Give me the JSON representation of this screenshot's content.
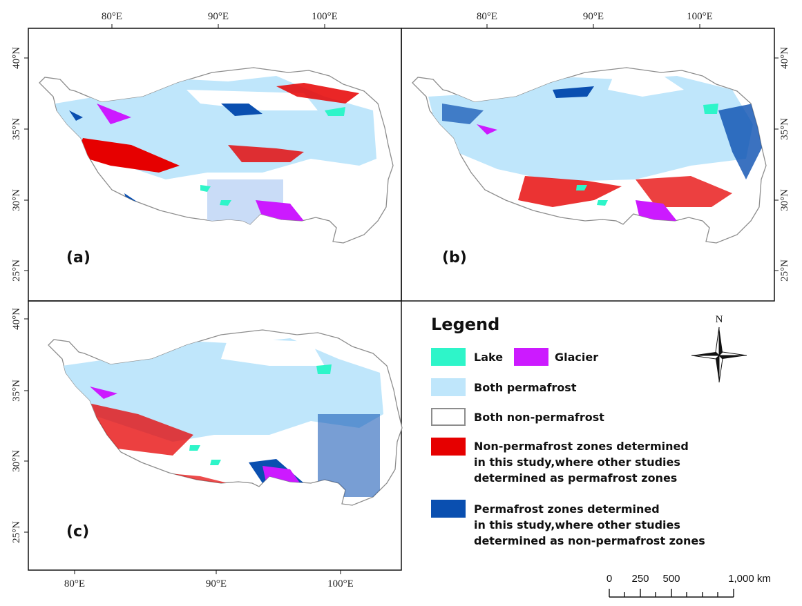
{
  "panels": [
    {
      "label": "(a)",
      "top_ticks": [
        "80°E",
        "90°E",
        "100°E"
      ],
      "bottom_ticks": [],
      "left_ticks": [
        "40°N",
        "35°N",
        "30°N",
        "25°N"
      ],
      "right_ticks": []
    },
    {
      "label": "(b)",
      "top_ticks": [
        "80°E",
        "90°E",
        "100°E"
      ],
      "bottom_ticks": [],
      "left_ticks": [],
      "right_ticks": [
        "40°N",
        "35°N",
        "30°N",
        "25°N"
      ]
    },
    {
      "label": "(c)",
      "top_ticks": [],
      "bottom_ticks": [
        "80°E",
        "90°E",
        "100°E"
      ],
      "left_ticks": [
        "40°N",
        "35°N",
        "30°N",
        "25°N"
      ],
      "right_ticks": []
    }
  ],
  "legend": {
    "title": "Legend",
    "items": {
      "lake": {
        "label": "Lake",
        "color": "#2ef5c9"
      },
      "glacier": {
        "label": "Glacier",
        "color": "#cc1aff"
      },
      "both_permafrost": {
        "label": "Both permafrost",
        "color": "#bfe6fb"
      },
      "both_non_permafrost": {
        "label": "Both non-permafrost",
        "color": "#ffffff"
      },
      "non_permafrost_this_study": {
        "lines": [
          "Non-permafrost zones determined",
          "in this study,where other studies",
          "determined as permafrost zones"
        ],
        "color": "#e60000"
      },
      "permafrost_this_study": {
        "lines": [
          "Permafrost zones determined",
          "in this study,where other studies",
          "determined as non-permafrost zones"
        ],
        "color": "#0a4fb0"
      }
    }
  },
  "north_arrow": {
    "label": "N"
  },
  "scale_bar": {
    "labels": [
      "0",
      "250",
      "500",
      "1,000 km"
    ]
  }
}
